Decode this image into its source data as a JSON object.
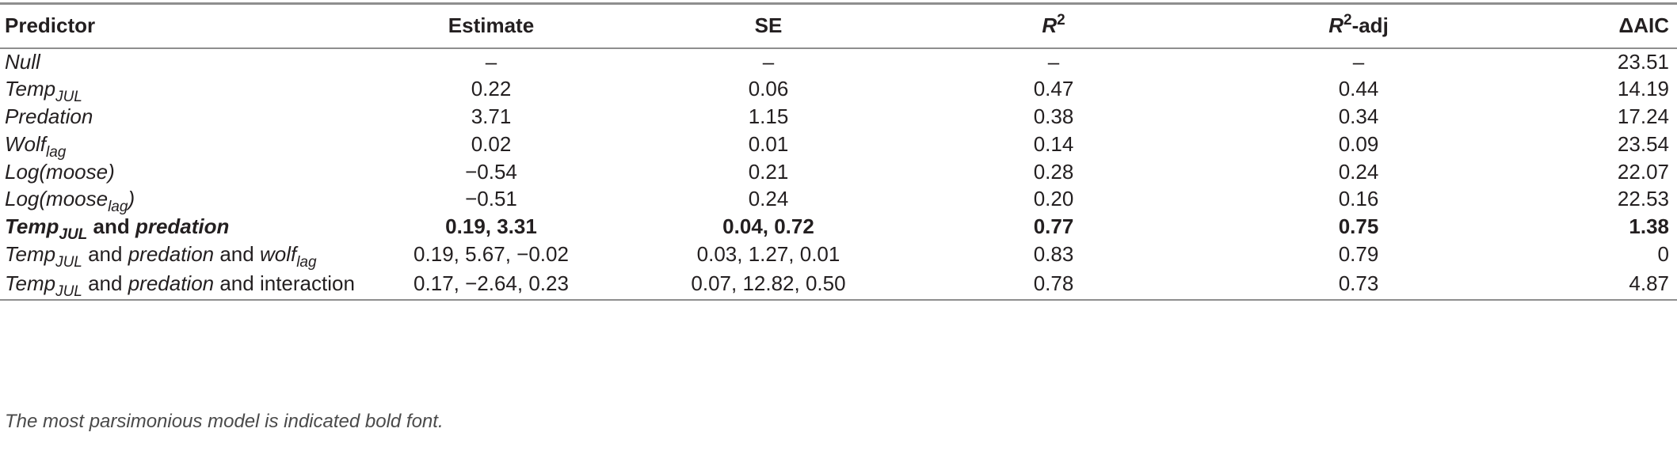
{
  "header": {
    "predictor": "Predictor",
    "estimate": "Estimate",
    "se": "SE",
    "r2_base": "R",
    "r2_sup": "2",
    "r2adj_base": "R",
    "r2adj_sup": "2",
    "r2adj_suffix": "-adj",
    "daic": "ΔAIC"
  },
  "rows": [
    {
      "p": [
        {
          "t": "Null",
          "s": ""
        }
      ],
      "estimate": "–",
      "se": "–",
      "r2": "–",
      "r2adj": "–",
      "daic": "23.51"
    },
    {
      "p": [
        {
          "t": "Temp",
          "s": "JUL"
        }
      ],
      "estimate": "0.22",
      "se": "0.06",
      "r2": "0.47",
      "r2adj": "0.44",
      "daic": "14.19"
    },
    {
      "p": [
        {
          "t": "Predation",
          "s": ""
        }
      ],
      "estimate": "3.71",
      "se": "1.15",
      "r2": "0.38",
      "r2adj": "0.34",
      "daic": "17.24"
    },
    {
      "p": [
        {
          "t": "Wolf",
          "s": "lag"
        }
      ],
      "estimate": "0.02",
      "se": "0.01",
      "r2": "0.14",
      "r2adj": "0.09",
      "daic": "23.54"
    },
    {
      "p": [
        {
          "t": "Log(moose)",
          "s": ""
        }
      ],
      "estimate": "−0.54",
      "se": "0.21",
      "r2": "0.28",
      "r2adj": "0.24",
      "daic": "22.07"
    },
    {
      "p": [
        {
          "t": "Log(moose",
          "s": "lag"
        },
        {
          "t": ")",
          "s": ""
        }
      ],
      "estimate": "−0.51",
      "se": "0.24",
      "r2": "0.20",
      "r2adj": "0.16",
      "daic": "22.53"
    },
    {
      "bold": true,
      "p": [
        {
          "t": "Temp",
          "s": "JUL"
        },
        {
          "plain": " and "
        },
        {
          "t": "predation",
          "s": ""
        }
      ],
      "estimate": "0.19, 3.31",
      "se": "0.04, 0.72",
      "r2": "0.77",
      "r2adj": "0.75",
      "daic": "1.38"
    },
    {
      "p": [
        {
          "t": "Temp",
          "s": "JUL"
        },
        {
          "plain": " and "
        },
        {
          "t": "predation",
          "s": ""
        },
        {
          "plain": " and "
        },
        {
          "t": "wolf",
          "s": "lag"
        }
      ],
      "estimate": "0.19, 5.67, −0.02",
      "se": "0.03, 1.27, 0.01",
      "r2": "0.83",
      "r2adj": "0.79",
      "daic": "0"
    },
    {
      "p": [
        {
          "t": "Temp",
          "s": "JUL"
        },
        {
          "plain": " and "
        },
        {
          "t": "predation",
          "s": ""
        },
        {
          "plain": " and interaction"
        }
      ],
      "estimate": "0.17, −2.64, 0.23",
      "se": "0.07, 12.82, 0.50",
      "r2": "0.78",
      "r2adj": "0.73",
      "daic": "4.87"
    }
  ],
  "footnote": "The most parsimonious model is indicated bold font."
}
